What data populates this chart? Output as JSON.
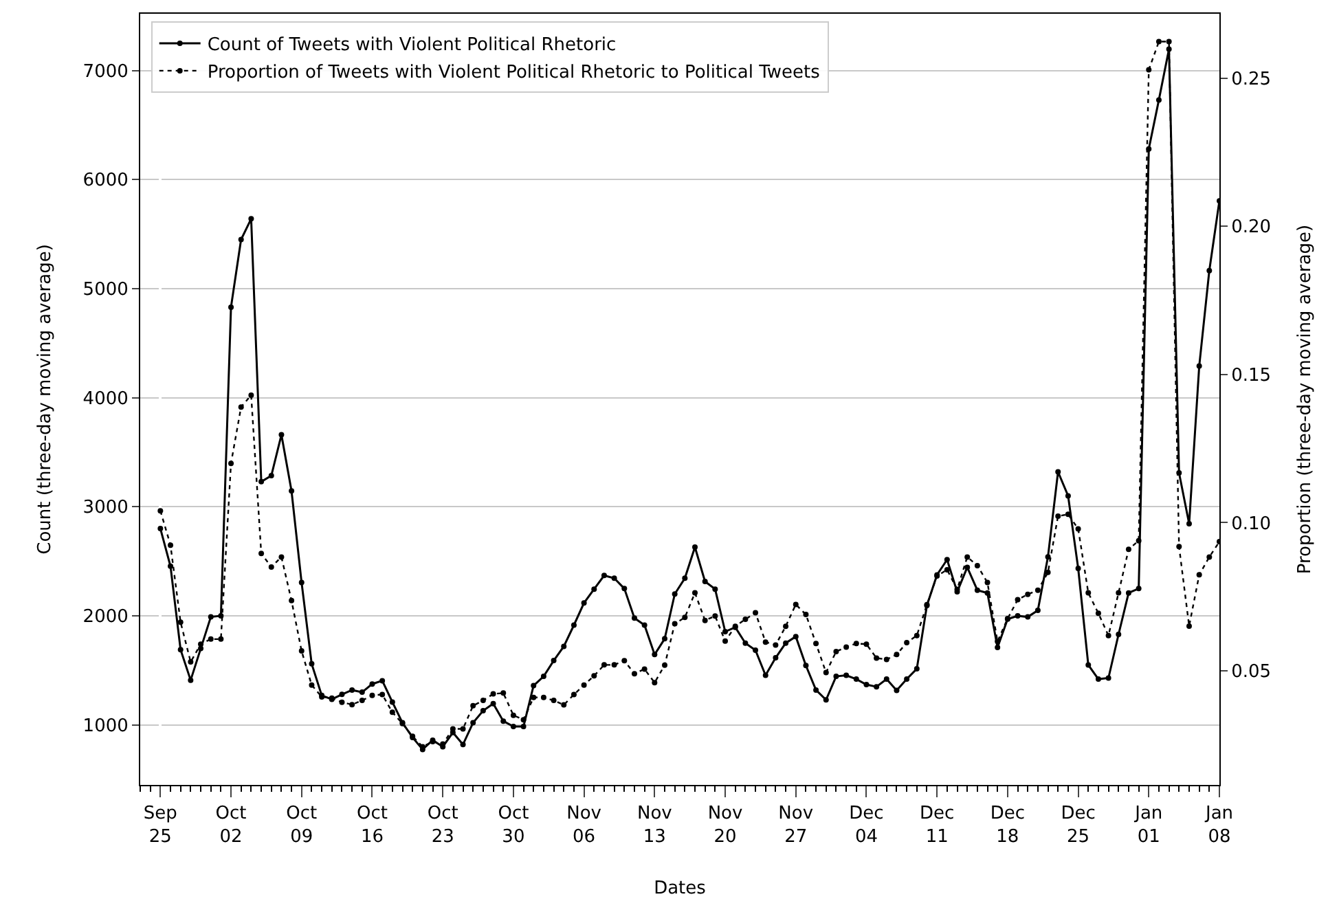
{
  "chart_data": {
    "type": "line",
    "xlabel": "Dates",
    "ylabel": "Count (three-day moving average)",
    "y2label": "Proportion (three-day moving average)",
    "categories": [
      "Sep\n25",
      null,
      null,
      null,
      null,
      null,
      null,
      "Oct\n02",
      null,
      null,
      null,
      null,
      null,
      null,
      "Oct\n09",
      null,
      null,
      null,
      null,
      null,
      null,
      "Oct\n16",
      null,
      null,
      null,
      null,
      null,
      null,
      "Oct\n23",
      null,
      null,
      null,
      null,
      null,
      null,
      "Oct\n30",
      null,
      null,
      null,
      null,
      null,
      null,
      "Nov\n06",
      null,
      null,
      null,
      null,
      null,
      null,
      "Nov\n13",
      null,
      null,
      null,
      null,
      null,
      null,
      "Nov\n20",
      null,
      null,
      null,
      null,
      null,
      null,
      "Nov\n27",
      null,
      null,
      null,
      null,
      null,
      null,
      "Dec\n04",
      null,
      null,
      null,
      null,
      null,
      null,
      "Dec\n11",
      null,
      null,
      null,
      null,
      null,
      null,
      "Dec\n18",
      null,
      null,
      null,
      null,
      null,
      null,
      "Dec\n25",
      null,
      null,
      null,
      null,
      null,
      null,
      "Jan\n01",
      null,
      null,
      null,
      null,
      null,
      null,
      "Jan\n08"
    ],
    "series": [
      {
        "name": "Count of Tweets with Violent Political Rhetoric",
        "color": "#000000",
        "line_style": "solid",
        "values": [
          2800,
          2455,
          1690,
          1410,
          1700,
          1990,
          2000,
          4830,
          5450,
          5640,
          3230,
          3285,
          3660,
          3145,
          2305,
          1560,
          1270,
          1235,
          1280,
          1320,
          1300,
          1375,
          1405,
          1210,
          1020,
          885,
          775,
          860,
          800,
          930,
          820,
          1020,
          1130,
          1195,
          1035,
          985,
          985,
          1360,
          1445,
          1590,
          1720,
          1915,
          2118,
          2245,
          2370,
          2345,
          2250,
          1980,
          1915,
          1645,
          1790,
          2200,
          2345,
          2630,
          2315,
          2245,
          1855,
          1895,
          1750,
          1685,
          1455,
          1615,
          1750,
          1810,
          1545,
          1320,
          1230,
          1445,
          1455,
          1420,
          1370,
          1350,
          1420,
          1317,
          1420,
          1515,
          2095,
          2375,
          2515,
          2220,
          2445,
          2235,
          2210,
          1710,
          1970,
          2000,
          1990,
          2050,
          2540,
          3320,
          3100,
          2435,
          1550,
          1420,
          1430,
          1830,
          2210,
          2250,
          6280,
          6730,
          7195,
          3310,
          2845,
          4290,
          5165,
          5805
        ]
      },
      {
        "name": "Proportion of Tweets with Violent Political Rhetoric to Political Tweets",
        "color": "#000000",
        "line_style": "dotted",
        "axis": "y2",
        "values": [
          0.104,
          0.0924,
          0.0664,
          0.053,
          0.059,
          0.0607,
          0.0607,
          0.12,
          0.139,
          0.143,
          0.0896,
          0.085,
          0.0884,
          0.0737,
          0.0567,
          0.0452,
          0.0412,
          0.0408,
          0.0394,
          0.0386,
          0.04,
          0.0417,
          0.042,
          0.036,
          0.0322,
          0.0279,
          0.0244,
          0.0261,
          0.0253,
          0.0304,
          0.0304,
          0.0382,
          0.04,
          0.0422,
          0.0425,
          0.035,
          0.0335,
          0.041,
          0.041,
          0.04,
          0.0385,
          0.042,
          0.0452,
          0.0483,
          0.052,
          0.052,
          0.0534,
          0.049,
          0.0506,
          0.046,
          0.0519,
          0.0659,
          0.068,
          0.0763,
          0.067,
          0.0685,
          0.06,
          0.065,
          0.0674,
          0.0696,
          0.0597,
          0.0587,
          0.065,
          0.0724,
          0.069,
          0.0592,
          0.0494,
          0.0565,
          0.058,
          0.0592,
          0.059,
          0.0543,
          0.0538,
          0.0555,
          0.0595,
          0.0619,
          0.0723,
          0.082,
          0.0841,
          0.0775,
          0.0884,
          0.0855,
          0.0798,
          0.0599,
          0.0676,
          0.074,
          0.0758,
          0.0772,
          0.0832,
          0.1022,
          0.1028,
          0.0979,
          0.0763,
          0.0694,
          0.0619,
          0.0763,
          0.091,
          0.0939,
          0.2528,
          0.2623,
          0.2623,
          0.0919,
          0.0651,
          0.0824,
          0.0884,
          0.0936
        ]
      }
    ],
    "ylim": [
      450,
      7520
    ],
    "yticks": [
      1000,
      2000,
      3000,
      4000,
      5000,
      6000,
      7000
    ],
    "y2lim": [
      0.0115,
      0.2717
    ],
    "y2ticks": [
      {
        "value": 0.05,
        "label": "0.05"
      },
      {
        "value": 0.1,
        "label": "0.10"
      },
      {
        "value": 0.15,
        "label": "0.15"
      },
      {
        "value": 0.2,
        "label": "0.20"
      },
      {
        "value": 0.25,
        "label": "0.25"
      }
    ],
    "grid": "y",
    "legend": "top left",
    "marker": "circle"
  }
}
